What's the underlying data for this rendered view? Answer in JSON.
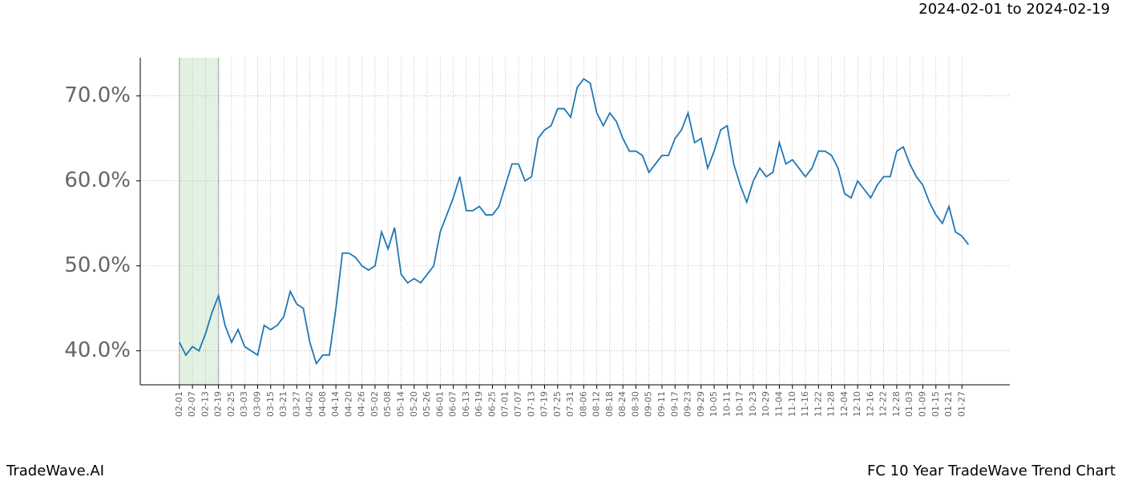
{
  "header": {
    "date_range": "2024-02-01 to 2024-02-19"
  },
  "footer": {
    "brand": "TradeWave.AI",
    "title": "FC 10 Year TradeWave Trend Chart"
  },
  "chart_data": {
    "type": "line",
    "x": [
      "02-01",
      "02-04",
      "02-07",
      "02-10",
      "02-13",
      "02-16",
      "02-19",
      "02-22",
      "02-25",
      "02-28",
      "03-03",
      "03-06",
      "03-09",
      "03-12",
      "03-15",
      "03-18",
      "03-21",
      "03-24",
      "03-27",
      "03-30",
      "04-02",
      "04-05",
      "04-08",
      "04-11",
      "04-14",
      "04-17",
      "04-20",
      "04-23",
      "04-26",
      "04-29",
      "05-02",
      "05-05",
      "05-08",
      "05-11",
      "05-14",
      "05-17",
      "05-20",
      "05-23",
      "05-26",
      "05-29",
      "06-01",
      "06-04",
      "06-07",
      "06-10",
      "06-13",
      "06-16",
      "06-19",
      "06-22",
      "06-25",
      "06-28",
      "07-01",
      "07-04",
      "07-07",
      "07-10",
      "07-13",
      "07-16",
      "07-19",
      "07-22",
      "07-25",
      "07-28",
      "07-31",
      "08-03",
      "08-06",
      "08-09",
      "08-12",
      "08-15",
      "08-18",
      "08-21",
      "08-24",
      "08-27",
      "08-30",
      "09-02",
      "09-05",
      "09-08",
      "09-11",
      "09-14",
      "09-17",
      "09-20",
      "09-23",
      "09-26",
      "09-29",
      "10-02",
      "10-05",
      "10-08",
      "10-11",
      "10-14",
      "10-17",
      "10-20",
      "10-23",
      "10-26",
      "10-29",
      "11-01",
      "11-04",
      "11-07",
      "11-10",
      "11-13",
      "11-16",
      "11-19",
      "11-22",
      "11-25",
      "11-28",
      "12-01",
      "12-04",
      "12-07",
      "12-10",
      "12-13",
      "12-16",
      "12-19",
      "12-22",
      "12-25",
      "12-28",
      "12-31",
      "01-03",
      "01-06",
      "01-09",
      "01-12",
      "01-15",
      "01-18",
      "01-21",
      "01-24",
      "01-27",
      "01-30"
    ],
    "series": [
      {
        "color": "#1f77b4",
        "values": [
          41,
          39.5,
          40.5,
          40,
          42,
          44.5,
          46.5,
          43,
          41,
          42.5,
          40.5,
          40,
          39.5,
          43,
          42.5,
          43,
          44,
          47,
          45.5,
          45,
          41,
          38.5,
          39.5,
          39.5,
          45,
          51.5,
          51.5,
          51,
          50,
          49.5,
          50,
          54,
          52,
          54.5,
          49,
          48,
          48.5,
          48,
          49,
          50,
          54,
          56,
          58,
          60.5,
          56.5,
          56.5,
          57,
          56,
          56,
          57,
          59.5,
          62,
          62,
          60,
          60.5,
          65,
          66,
          66.5,
          68.5,
          68.5,
          67.5,
          71,
          72,
          71.5,
          68,
          66.5,
          68,
          67,
          65,
          63.5,
          63.5,
          63,
          61,
          62,
          63,
          63,
          65,
          66,
          68,
          64.5,
          65,
          61.5,
          63.5,
          66,
          66.5,
          62,
          59.5,
          57.5,
          60,
          61.5,
          60.5,
          61,
          64.5,
          62,
          62.5,
          61.5,
          60.5,
          61.5,
          63.5,
          63.5,
          63,
          61.5,
          58.5,
          58,
          60,
          59,
          58,
          59.5,
          60.5,
          60.5,
          63.5,
          64,
          62,
          60.5,
          59.5,
          57.5,
          56,
          55,
          57,
          54,
          53.5,
          52.5
        ]
      }
    ],
    "xlim": [
      "01-14",
      "02-18"
    ],
    "xticks": [
      "02-01",
      "02-07",
      "02-13",
      "02-19",
      "02-25",
      "03-03",
      "03-09",
      "03-15",
      "03-21",
      "03-27",
      "04-02",
      "04-08",
      "04-14",
      "04-20",
      "04-26",
      "05-02",
      "05-08",
      "05-14",
      "05-20",
      "05-26",
      "06-01",
      "06-07",
      "06-13",
      "06-19",
      "06-25",
      "07-01",
      "07-07",
      "07-13",
      "07-19",
      "07-25",
      "07-31",
      "08-06",
      "08-12",
      "08-18",
      "08-24",
      "08-30",
      "09-05",
      "09-11",
      "09-17",
      "09-23",
      "09-29",
      "10-05",
      "10-11",
      "10-17",
      "10-23",
      "10-29",
      "11-04",
      "11-10",
      "11-16",
      "11-22",
      "11-28",
      "12-04",
      "12-10",
      "12-16",
      "12-22",
      "12-28",
      "01-03",
      "01-09",
      "01-15",
      "01-21",
      "01-27"
    ],
    "ylim": [
      36,
      74.5
    ],
    "yticks": [
      {
        "value": 40,
        "label": "40.0%"
      },
      {
        "value": 50,
        "label": "50.0%"
      },
      {
        "value": 60,
        "label": "60.0%"
      },
      {
        "value": 70,
        "label": "70.0%"
      }
    ],
    "grid": true,
    "shade": {
      "from": "02-01",
      "to": "02-19",
      "color": "#e3f1e3"
    }
  }
}
